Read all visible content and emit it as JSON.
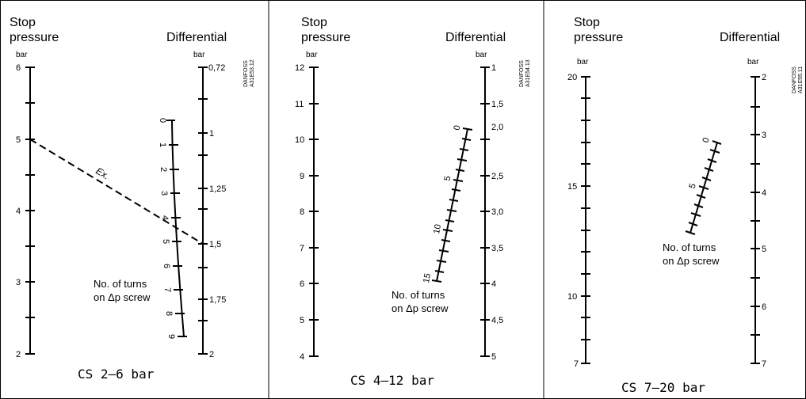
{
  "panels": [
    {
      "id": "cs-2-6",
      "stop_title": [
        "Stop",
        "pressure"
      ],
      "diff_title": "Differential",
      "stop_unit": "bar",
      "diff_unit": "bar",
      "doc_code": [
        "DANFOSS",
        "A31E53.12"
      ],
      "caption": "CS 2–6 bar",
      "stop_labels": [
        "6",
        "5",
        "4",
        "3",
        "2"
      ],
      "diff_labels": [
        "0,72",
        "1",
        "1,25",
        "1,5",
        "1,75",
        "2"
      ],
      "turn_labels": [
        "0",
        "1",
        "2",
        "3",
        "4",
        "5",
        "6",
        "7",
        "8",
        "9"
      ],
      "note": [
        "No. of turns",
        "on Δp screw"
      ],
      "example_label": "Ex."
    },
    {
      "id": "cs-4-12",
      "stop_title": [
        "Stop",
        "pressure"
      ],
      "diff_title": "Differential",
      "stop_unit": "bar",
      "diff_unit": "bar",
      "doc_code": [
        "DANFOSS",
        "A31E54.13"
      ],
      "caption": "CS 4–12 bar",
      "stop_labels": [
        "12",
        "11",
        "10",
        "9",
        "8",
        "7",
        "6",
        "5",
        "4"
      ],
      "diff_labels": [
        "1",
        "1,5",
        "2,0",
        "2,5",
        "3,0",
        "3,5",
        "4",
        "4,5",
        "5"
      ],
      "turn_labels": [
        "0",
        "5",
        "10",
        "15"
      ],
      "note": [
        "No. of turns",
        "on Δp screw"
      ]
    },
    {
      "id": "cs-7-20",
      "stop_title": [
        "Stop",
        "pressure"
      ],
      "diff_title": "Differential",
      "stop_unit": "bar",
      "diff_unit": "bar",
      "doc_code": [
        "DANFOSS",
        "A31E55.11"
      ],
      "caption": "CS 7–20 bar",
      "stop_labels": [
        "20",
        "15",
        "10",
        "7"
      ],
      "diff_labels": [
        "2",
        "3",
        "4",
        "5",
        "6",
        "7"
      ],
      "turn_labels": [
        "0",
        "5"
      ],
      "note": [
        "No. of turns",
        "on Δp screw"
      ]
    }
  ]
}
